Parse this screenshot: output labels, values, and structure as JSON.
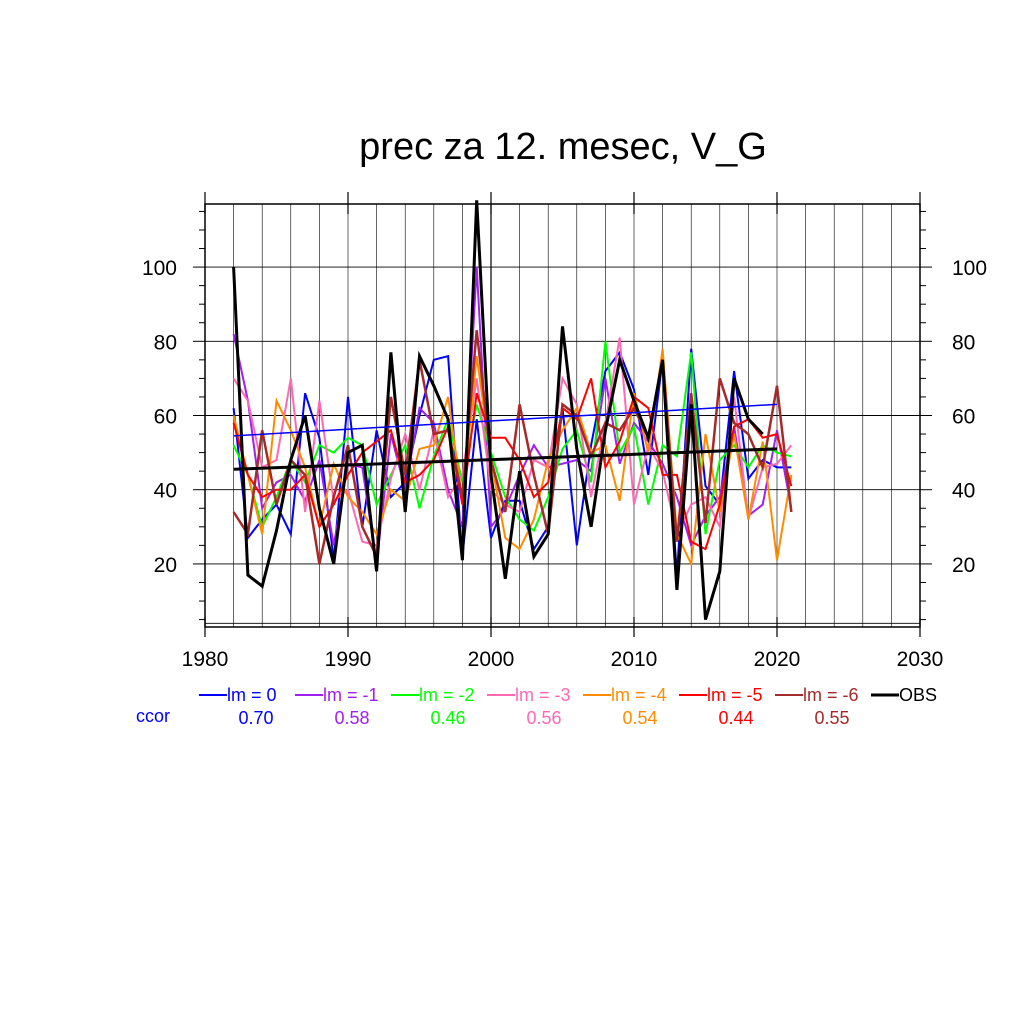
{
  "chart_data": {
    "type": "line",
    "title": "prec za 12. mesec, V_G",
    "xlabel": "",
    "ylabel": "",
    "xlim": [
      1980,
      2030
    ],
    "ylim": [
      3,
      117
    ],
    "x_ticks": [
      1980,
      1990,
      2000,
      2010,
      2020,
      2030
    ],
    "y_ticks": [
      20,
      40,
      60,
      80,
      100
    ],
    "grid": true,
    "x": [
      1982,
      1983,
      1984,
      1985,
      1986,
      1987,
      1988,
      1989,
      1990,
      1991,
      1992,
      1993,
      1994,
      1995,
      1996,
      1997,
      1998,
      1999,
      2000,
      2001,
      2002,
      2003,
      2004,
      2005,
      2006,
      2007,
      2008,
      2009,
      2010,
      2011,
      2012,
      2013,
      2014,
      2015,
      2016,
      2017,
      2018,
      2019,
      2020,
      2021
    ],
    "series": [
      {
        "name": "lm = 0",
        "color": "#0000ff",
        "width": 2,
        "values": [
          62,
          27,
          32,
          36,
          28,
          66,
          54,
          21,
          65,
          30,
          56,
          38,
          42,
          60,
          75,
          76,
          22,
          59,
          27,
          37,
          37,
          24,
          30,
          62,
          25,
          52,
          72,
          77,
          67,
          44,
          75,
          17,
          78,
          41,
          36,
          72,
          43,
          48,
          46,
          46
        ],
        "trend": [
          54.5,
          63
        ]
      },
      {
        "name": "lm = -1",
        "color": "#a020f0",
        "width": 2,
        "values": [
          82,
          64,
          35,
          42,
          44,
          37,
          48,
          25,
          47,
          46,
          20,
          55,
          40,
          62,
          58,
          40,
          30,
          100,
          30,
          35,
          44,
          52,
          46,
          47,
          48,
          45,
          70,
          47,
          58,
          53,
          47,
          38,
          25,
          33,
          38,
          57,
          33,
          36,
          56,
          35
        ]
      },
      {
        "name": "lm = -2",
        "color": "#00ff00",
        "width": 2,
        "values": [
          52,
          44,
          30,
          38,
          48,
          42,
          52,
          50,
          54,
          52,
          36,
          44,
          52,
          35,
          49,
          59,
          42,
          63,
          50,
          38,
          32,
          29,
          38,
          51,
          56,
          42,
          80,
          50,
          57,
          36,
          52,
          49,
          77,
          28,
          48,
          52,
          46,
          52,
          50,
          49
        ]
      },
      {
        "name": "lm = -3",
        "color": "#ff69b4",
        "width": 2,
        "values": [
          70,
          64,
          46,
          48,
          70,
          34,
          64,
          37,
          40,
          26,
          25,
          43,
          55,
          40,
          56,
          38,
          44,
          70,
          40,
          36,
          34,
          48,
          46,
          70,
          63,
          38,
          58,
          81,
          36,
          52,
          45,
          28,
          36,
          38,
          30,
          65,
          32,
          46,
          47,
          52
        ]
      },
      {
        "name": "lm = -4",
        "color": "#ff8c00",
        "width": 2,
        "values": [
          60,
          44,
          28,
          64,
          56,
          46,
          30,
          47,
          38,
          34,
          28,
          40,
          37,
          51,
          52,
          65,
          37,
          76,
          48,
          27,
          24,
          32,
          48,
          56,
          62,
          50,
          52,
          37,
          66,
          50,
          78,
          28,
          20,
          55,
          34,
          55,
          32,
          53,
          21,
          44
        ]
      },
      {
        "name": "lm = -5",
        "color": "#ff0000",
        "width": 2,
        "values": [
          58,
          44,
          38,
          40,
          40,
          44,
          30,
          36,
          44,
          50,
          53,
          56,
          42,
          44,
          48,
          57,
          36,
          66,
          54,
          54,
          48,
          38,
          42,
          62,
          59,
          70,
          46,
          53,
          65,
          62,
          44,
          44,
          26,
          24,
          36,
          57,
          59,
          54,
          55,
          41
        ]
      },
      {
        "name": "lm = -6",
        "color": "#a52a2a",
        "width": 2.5,
        "values": [
          34,
          28,
          56,
          36,
          48,
          44,
          20,
          38,
          52,
          30,
          22,
          65,
          44,
          75,
          55,
          56,
          38,
          83,
          48,
          34,
          63,
          44,
          28,
          63,
          60,
          49,
          58,
          56,
          62,
          54,
          75,
          26,
          66,
          31,
          70,
          58,
          55,
          46,
          68,
          34
        ]
      },
      {
        "name": "OBS",
        "color": "#000000",
        "width": 3,
        "values": [
          100,
          17,
          14,
          29,
          48,
          60,
          35,
          20,
          50,
          52,
          18,
          77,
          34,
          76,
          68,
          59,
          21,
          118,
          44,
          16,
          45,
          22,
          28,
          84,
          51,
          30,
          56,
          75,
          64,
          54,
          75,
          13,
          63,
          5,
          18,
          70,
          59,
          55,
          null,
          null
        ],
        "trend": [
          45.5,
          51
        ]
      }
    ],
    "legend": {
      "placement": "bottom",
      "ccor_label": "ccor",
      "ccor_values": [
        "0.70",
        "0.58",
        "0.46",
        "0.56",
        "0.54",
        "0.44",
        "0.55"
      ]
    }
  }
}
